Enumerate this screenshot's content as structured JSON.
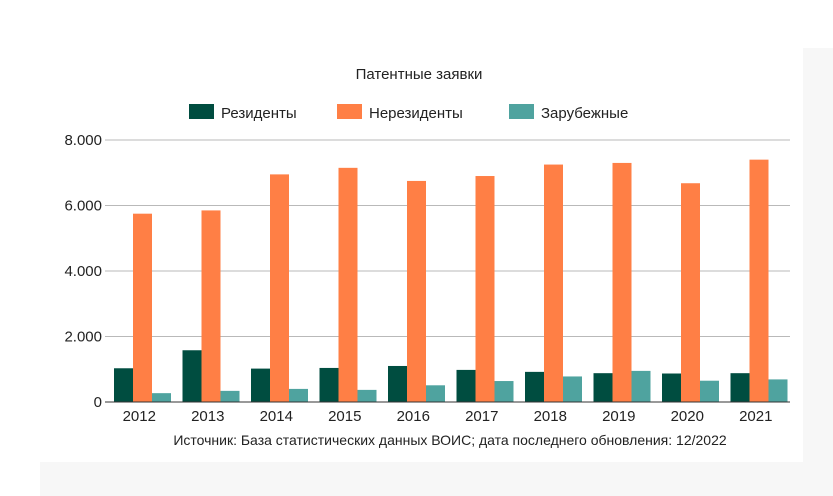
{
  "chart_data": {
    "type": "bar",
    "title": "Патентные заявки",
    "categories": [
      "2012",
      "2013",
      "2014",
      "2015",
      "2016",
      "2017",
      "2018",
      "2019",
      "2020",
      "2021"
    ],
    "series": [
      {
        "name": "Резиденты",
        "color": "#004d40",
        "values": [
          1030,
          1580,
          1020,
          1040,
          1100,
          980,
          920,
          880,
          870,
          880
        ]
      },
      {
        "name": "Нерезиденты",
        "color": "#ff7f45",
        "values": [
          5750,
          5850,
          6950,
          7150,
          6750,
          6900,
          7250,
          7300,
          6680,
          7400
        ]
      },
      {
        "name": "Зарубежные",
        "color": "#4fa39f",
        "values": [
          270,
          340,
          400,
          370,
          510,
          640,
          780,
          950,
          650,
          690
        ]
      }
    ],
    "yticks": [
      "0",
      "2.000",
      "4.000",
      "6.000",
      "8.000"
    ],
    "ylim": [
      0,
      8000
    ],
    "grid": true,
    "legend": "top",
    "source": "Источник: База статистических данных ВОИС; дата последнего обновления: 12/2022"
  }
}
